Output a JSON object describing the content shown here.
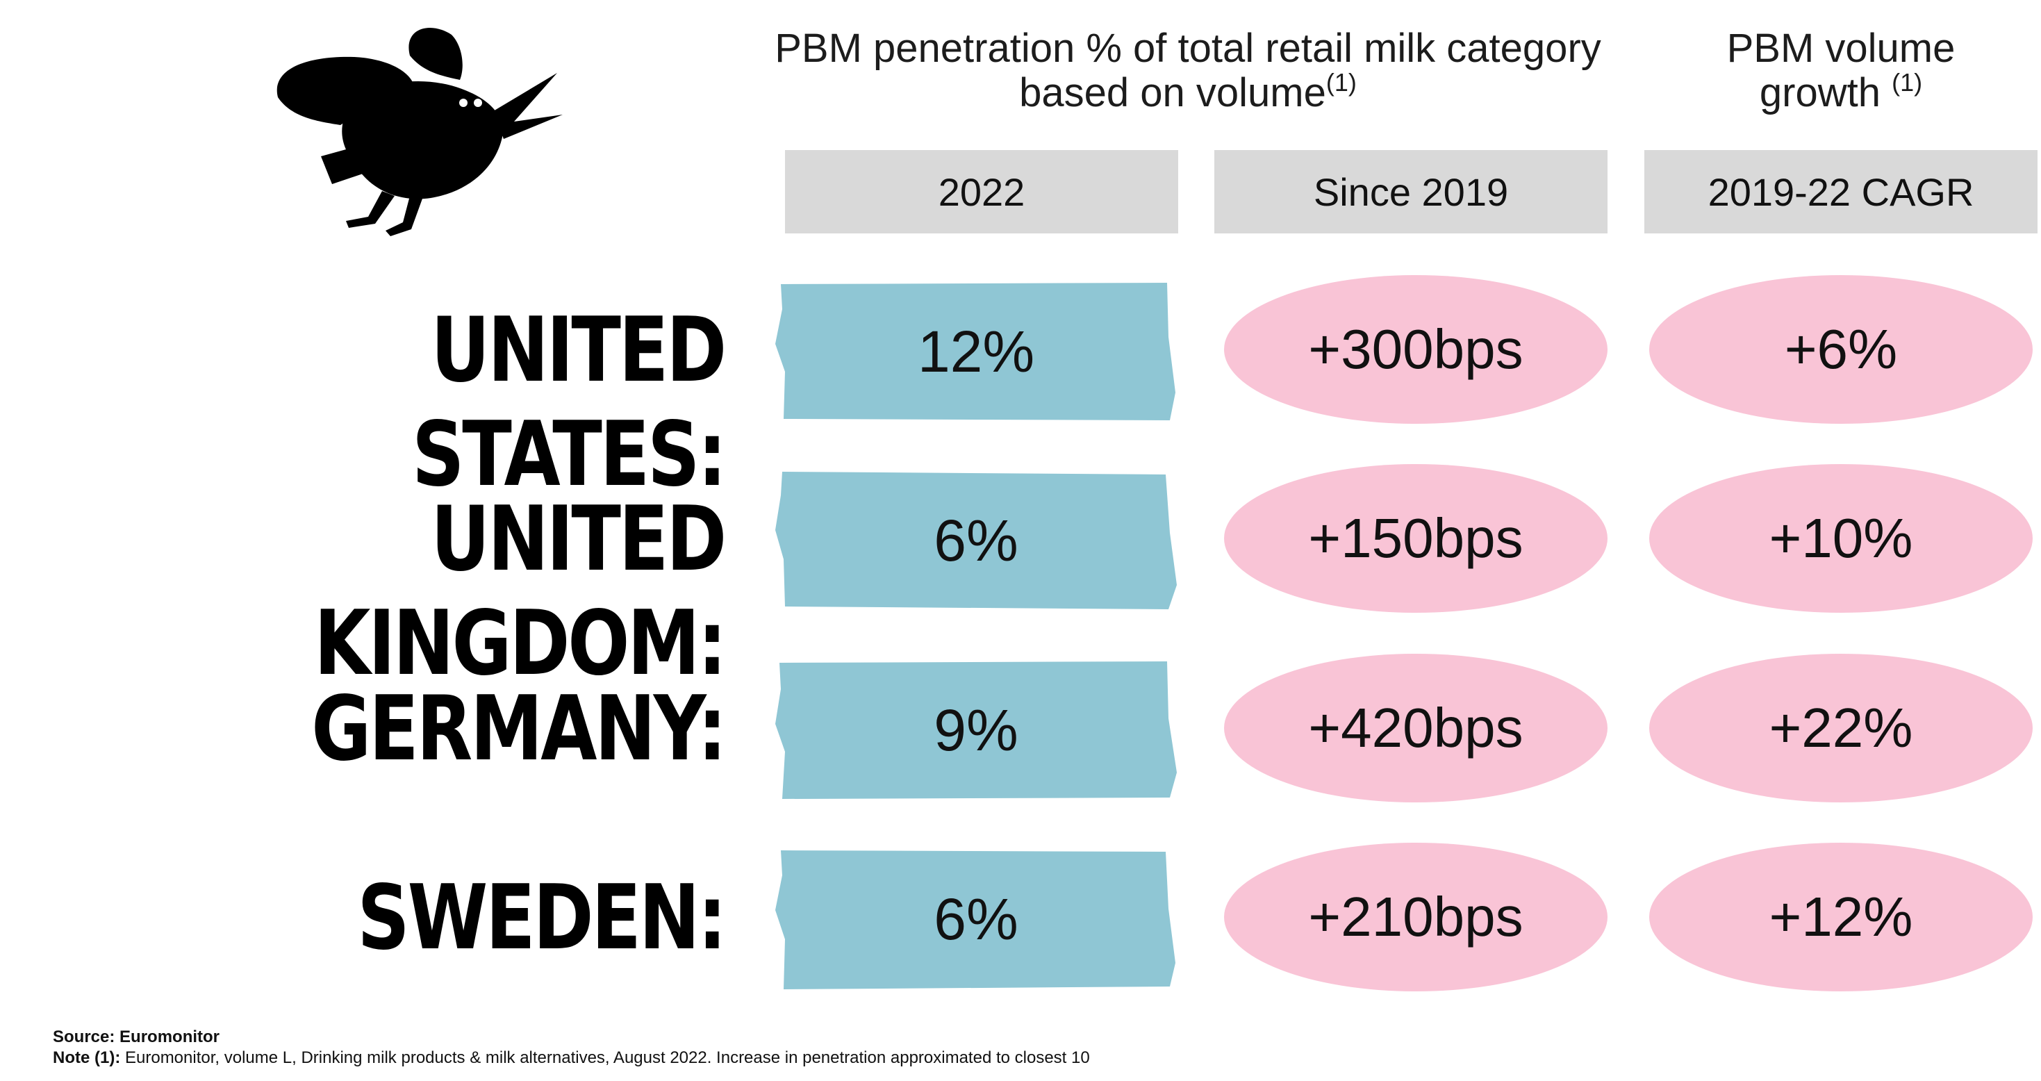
{
  "header": {
    "penetration_title": "PBM penetration % of total retail milk category based on volume",
    "penetration_note": "(1)",
    "growth_title": "PBM volume growth",
    "growth_note": "(1)"
  },
  "columns": [
    "2022",
    "Since 2019",
    "2019-22 CAGR"
  ],
  "rows": [
    {
      "country": "UNITED STATES:",
      "penetration_2022": "12%",
      "change_since_2019": "+300bps",
      "cagr": "+6%"
    },
    {
      "country": "UNITED KINGDOM:",
      "penetration_2022": "6%",
      "change_since_2019": "+150bps",
      "cagr": "+10%"
    },
    {
      "country": "GERMANY:",
      "penetration_2022": "9%",
      "change_since_2019": "+420bps",
      "cagr": "+22%"
    },
    {
      "country": "SWEDEN:",
      "penetration_2022": "6%",
      "change_since_2019": "+210bps",
      "cagr": "+12%"
    }
  ],
  "footer": {
    "source_label": "Source: Euromonitor",
    "note_label": "Note (1):",
    "note_text": " Euromonitor, volume L, Drinking milk products & milk alternatives, August 2022. Increase in penetration approximated to closest 10"
  },
  "colors": {
    "header_box": "#d9d9d9",
    "penetration_box": "#8fc6d4",
    "growth_pill": "#f9c4d6",
    "logo": "#000000"
  },
  "icons": {
    "logo": "bird-logo-icon"
  }
}
